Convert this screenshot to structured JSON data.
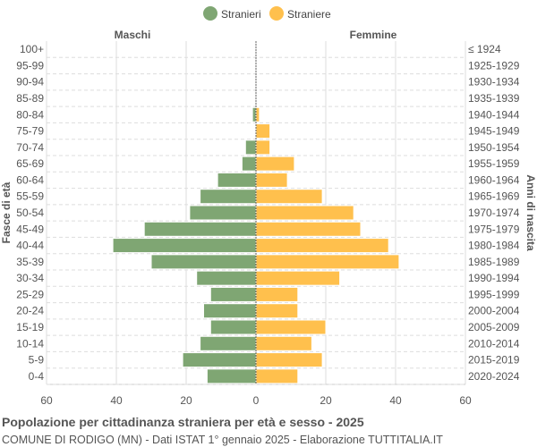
{
  "chart_data": {
    "type": "bar",
    "orientation": "horizontal-pyramid",
    "legend": {
      "position": "top",
      "entries": [
        "Stranieri",
        "Straniere"
      ]
    },
    "colors": {
      "Stranieri": "#7fa673",
      "Straniere": "#ffc04d"
    },
    "left_header": "Maschi",
    "right_header": "Femmine",
    "ylabel_left": "Fasce di età",
    "ylabel_right": "Anni di nascita",
    "xlim": [
      -60,
      60
    ],
    "xticks": [
      "60",
      "40",
      "20",
      "0",
      "20",
      "40",
      "60"
    ],
    "grid": true,
    "categories": [
      "100+",
      "95-99",
      "90-94",
      "85-89",
      "80-84",
      "75-79",
      "70-74",
      "65-69",
      "60-64",
      "55-59",
      "50-54",
      "45-49",
      "40-44",
      "35-39",
      "30-34",
      "25-29",
      "20-24",
      "15-19",
      "10-14",
      "5-9",
      "0-4"
    ],
    "birth_years": [
      "≤ 1924",
      "1925-1929",
      "1930-1934",
      "1935-1939",
      "1940-1944",
      "1945-1949",
      "1950-1954",
      "1955-1959",
      "1960-1964",
      "1965-1969",
      "1970-1974",
      "1975-1979",
      "1980-1984",
      "1985-1989",
      "1990-1994",
      "1995-1999",
      "2000-2004",
      "2005-2009",
      "2010-2014",
      "2015-2019",
      "2020-2024"
    ],
    "series": [
      {
        "name": "Stranieri",
        "values": [
          0,
          0,
          0,
          0,
          1,
          0,
          3,
          4,
          11,
          16,
          19,
          32,
          41,
          30,
          17,
          13,
          15,
          13,
          16,
          21,
          14
        ]
      },
      {
        "name": "Straniere",
        "values": [
          0,
          0,
          0,
          0,
          1,
          4,
          4,
          11,
          9,
          19,
          28,
          30,
          38,
          41,
          24,
          12,
          12,
          20,
          16,
          19,
          12
        ]
      }
    ],
    "title": "Popolazione per cittadinanza straniera per età e sesso - 2025",
    "subtitle": "COMUNE DI RODIGO (MN) - Dati ISTAT 1° gennaio 2025 - Elaborazione TUTTITALIA.IT"
  }
}
